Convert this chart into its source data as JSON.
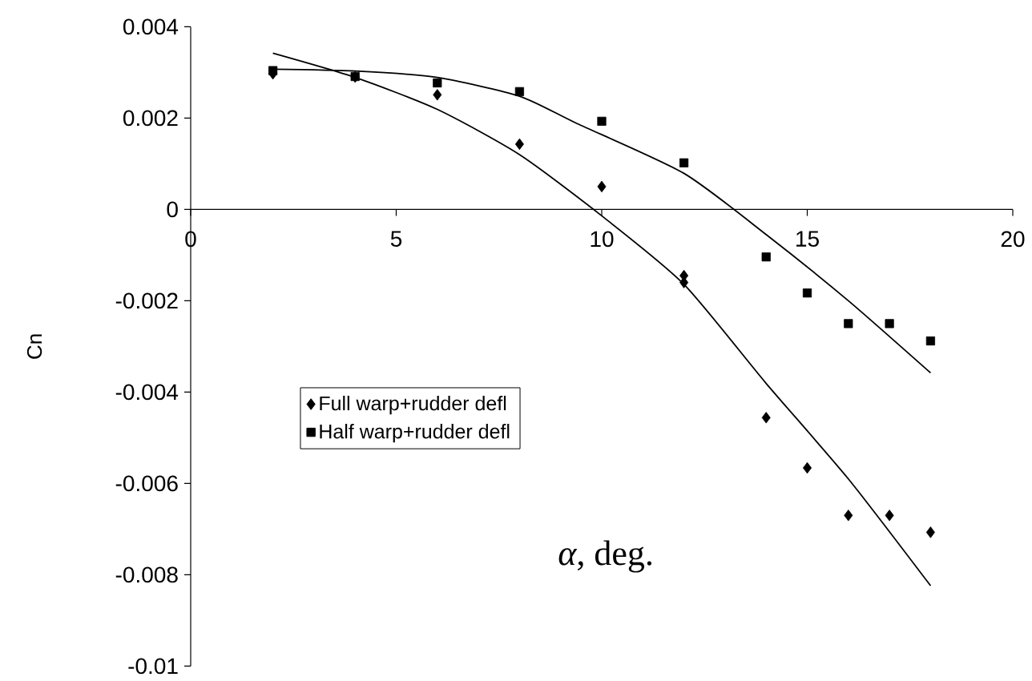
{
  "chart_data": {
    "type": "scatter",
    "xlabel": "*α*, deg.",
    "ylabel": "Cn",
    "xlim": [
      0,
      20
    ],
    "xticks": [
      0,
      5,
      10,
      15,
      20
    ],
    "ylim": [
      -0.01,
      0.004
    ],
    "yticks": [
      -0.01,
      -0.008,
      -0.006,
      -0.004,
      -0.002,
      0,
      0.002,
      0.004
    ],
    "grid": false,
    "legend": "left",
    "series": [
      {
        "name": "Full warp+rudder defl",
        "marker": "diamond",
        "color": "#000000",
        "x": [
          2,
          4,
          6,
          8,
          10,
          12,
          12,
          14,
          15,
          16,
          17,
          18
        ],
        "values": [
          0.00297,
          0.0029,
          0.00251,
          0.00143,
          0.0005,
          -0.00145,
          -0.0016,
          -0.00456,
          -0.00566,
          -0.0067,
          -0.0067,
          -0.00707
        ]
      },
      {
        "name": "Half warp+rudder defl",
        "marker": "square",
        "color": "#000000",
        "x": [
          2,
          4,
          6,
          8,
          10,
          12,
          14,
          15,
          16,
          17,
          18
        ],
        "values": [
          0.00304,
          0.00291,
          0.00277,
          0.00258,
          0.00193,
          0.00102,
          -0.00104,
          -0.00183,
          -0.0025,
          -0.0025,
          -0.00288
        ]
      },
      {
        "type": "line",
        "marker": "none",
        "line_style": "solid",
        "color": "#000000",
        "x": [
          2,
          4,
          6,
          8,
          10,
          12,
          14,
          16,
          18
        ],
        "values": [
          0.00342,
          0.00289,
          0.00219,
          0.0012,
          -0.00014,
          -0.00164,
          -0.00381,
          -0.0059,
          -0.00824
        ]
      },
      {
        "type": "line",
        "marker": "none",
        "line_style": "solid",
        "color": "#000000",
        "x": [
          2,
          4,
          6,
          8,
          9.4,
          12,
          14,
          16,
          18
        ],
        "values": [
          0.00307,
          0.00303,
          0.00289,
          0.00248,
          0.00188,
          0.00079,
          -0.00055,
          -0.002,
          -0.00358
        ]
      }
    ]
  }
}
